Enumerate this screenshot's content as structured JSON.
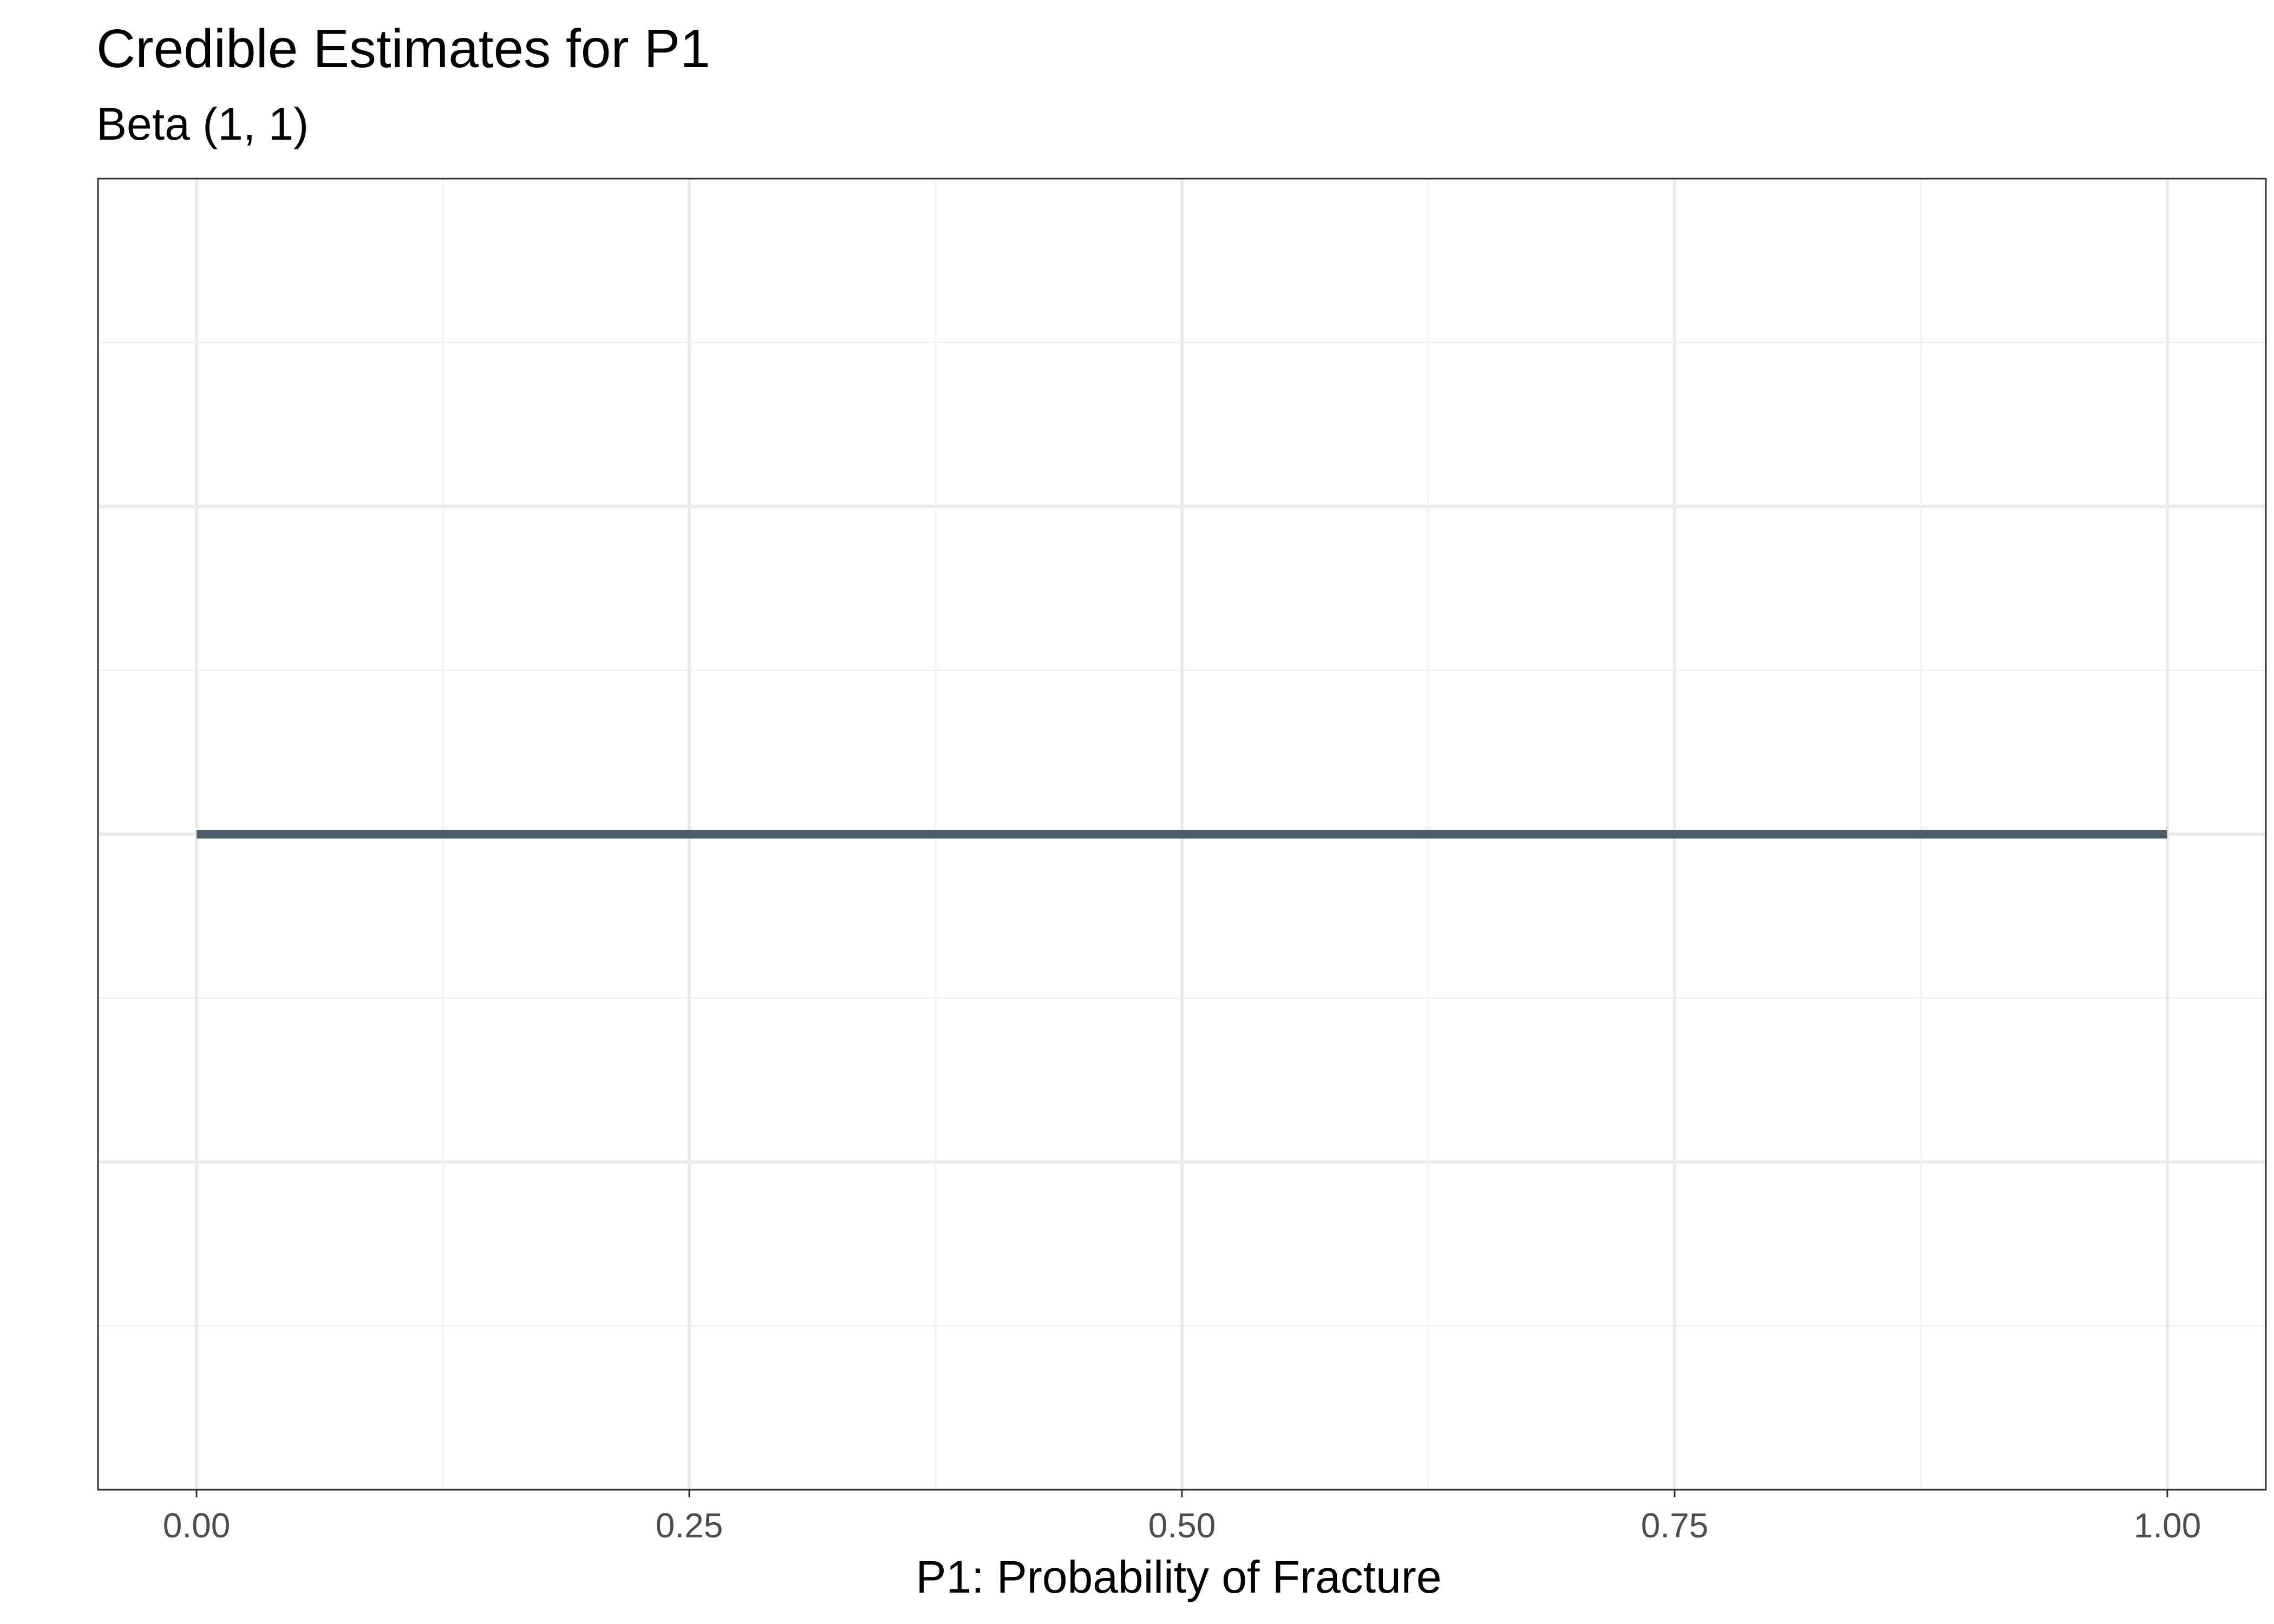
{
  "chart_data": {
    "type": "line",
    "title": "Credible Estimates for P1",
    "subtitle": "Beta (1, 1)",
    "xlabel": "P1: Probability of Fracture",
    "ylabel": "",
    "xlim": [
      -0.05,
      1.05
    ],
    "x_ticks": [
      0,
      0.25,
      0.5,
      0.75,
      1
    ],
    "x_tick_labels": [
      "0.00",
      "0.25",
      "0.50",
      "0.75",
      "1.00"
    ],
    "y_axis_labels_shown": false,
    "grid": true,
    "legend": "none",
    "series": [
      {
        "color": "#4f5f6a",
        "x": [
          0,
          1
        ],
        "y": [
          0,
          0
        ]
      }
    ]
  }
}
